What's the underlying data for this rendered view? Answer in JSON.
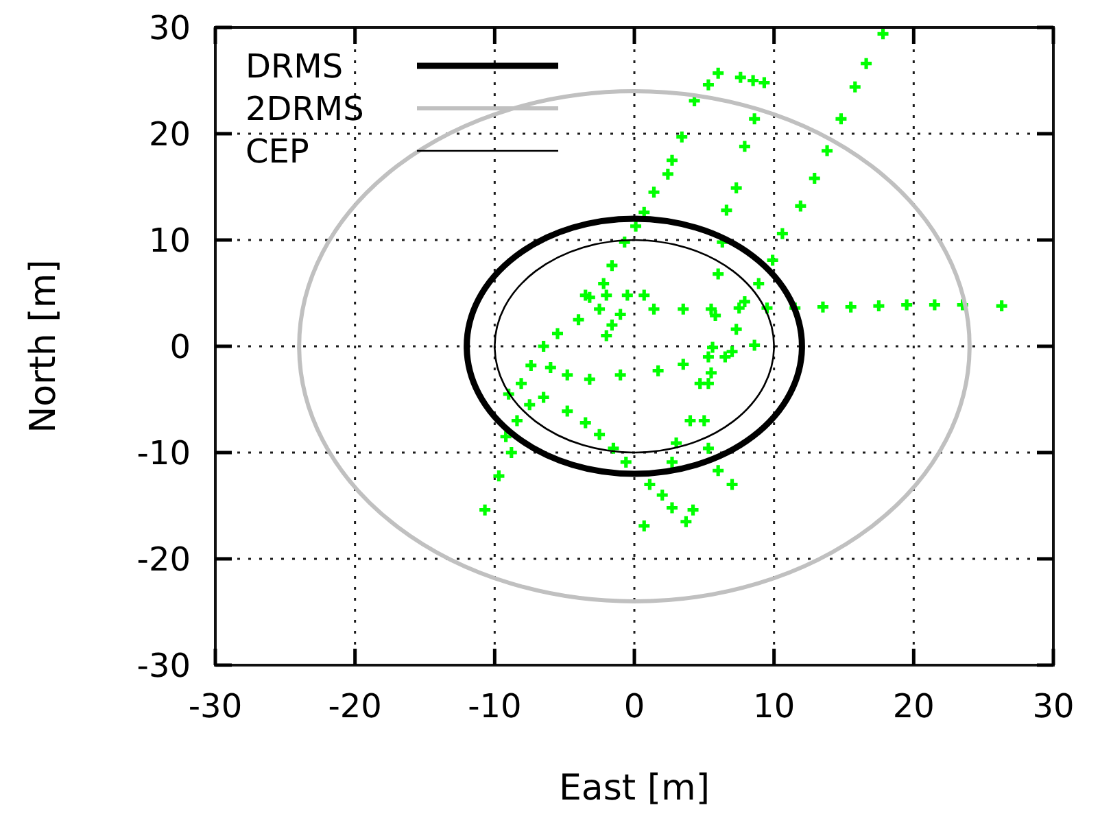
{
  "chart_data": {
    "type": "scatter",
    "xlabel": "East [m]",
    "ylabel": "North [m]",
    "xlim": [
      -30,
      30
    ],
    "ylim": [
      -30,
      30
    ],
    "xticks": [
      -30,
      -20,
      -10,
      0,
      10,
      20,
      30
    ],
    "yticks": [
      -30,
      -20,
      -10,
      0,
      10,
      20,
      30
    ],
    "grid": true,
    "annotations": [
      "DRMS",
      "2DRMS",
      "CEP"
    ],
    "series": [
      {
        "type": "scatter",
        "color": "#00ff00",
        "marker": "cross",
        "x": [
          17.8,
          16.6,
          15.8,
          14.8,
          13.8,
          12.9,
          11.9,
          10.6,
          9.9,
          8.9,
          7.9,
          7.3,
          6.5,
          5.5,
          4.7,
          4.0,
          3.0,
          2.7,
          9.3,
          8.6,
          7.9,
          7.3,
          6.6,
          6.3,
          6.0,
          5.8,
          5.6,
          5.3,
          5.0,
          5.3,
          6.0,
          7.0,
          6.0,
          7.6,
          8.5,
          5.3,
          4.3,
          3.4,
          2.7,
          2.4,
          1.4,
          0.7,
          0.1,
          -0.7,
          -1.6,
          -2.2,
          -3.5,
          -2,
          -0.5,
          0.7,
          1.4,
          3.5,
          5.5,
          7.5,
          9.5,
          11.5,
          13.5,
          15.5,
          17.5,
          19.5,
          21.5,
          23.5,
          26.3,
          -1.6,
          -1,
          -2.5,
          -3.2,
          -2,
          -4,
          -5.5,
          -6.5,
          -7.4,
          -8.1,
          -6.5,
          -4.8,
          -6,
          -9,
          -7.5,
          -3.2,
          -1,
          1.7,
          3.5,
          5.3,
          7,
          8.6,
          -4.8,
          -3.5,
          -2.5,
          -1.5,
          -0.6,
          1.1,
          2,
          2.7,
          3.7,
          4.2,
          0.7,
          -8.4,
          -8.8,
          -9.7,
          -10.7,
          -9.2
        ],
        "values": [
          29.4,
          26.6,
          24.4,
          21.4,
          18.4,
          15.8,
          13.2,
          10.6,
          8.1,
          5.9,
          4.2,
          1.6,
          -1,
          -2.5,
          -3.5,
          -7.0,
          -9.1,
          -10.9,
          24.8,
          21.4,
          18.8,
          14.9,
          12.8,
          9.8,
          6.8,
          2.9,
          -0.1,
          -3.5,
          -7.0,
          -9.6,
          -11.7,
          -13.0,
          25.7,
          25.3,
          25.0,
          24.6,
          23.1,
          19.7,
          17.5,
          16.2,
          14.5,
          12.6,
          11.3,
          9.8,
          7.6,
          5.9,
          4.8,
          4.8,
          4.8,
          4.8,
          3.5,
          3.5,
          3.5,
          3.6,
          3.6,
          3.6,
          3.7,
          3.7,
          3.8,
          3.9,
          3.9,
          3.9,
          3.8,
          2.0,
          3,
          3.5,
          4.6,
          1,
          2.5,
          1.2,
          0,
          -1.8,
          -3.5,
          -4.8,
          -2.7,
          -2,
          -4.5,
          -5.5,
          -3.1,
          -2.7,
          -2.3,
          -1.7,
          -1.0,
          -0.5,
          0.1,
          -6.1,
          -7.2,
          -8.3,
          -9.6,
          -10.9,
          -13.0,
          -14,
          -15.2,
          -16.5,
          -15.4,
          -16.9,
          -7.0,
          -10.0,
          -12.2,
          -15.4,
          -8.5
        ]
      }
    ]
  }
}
